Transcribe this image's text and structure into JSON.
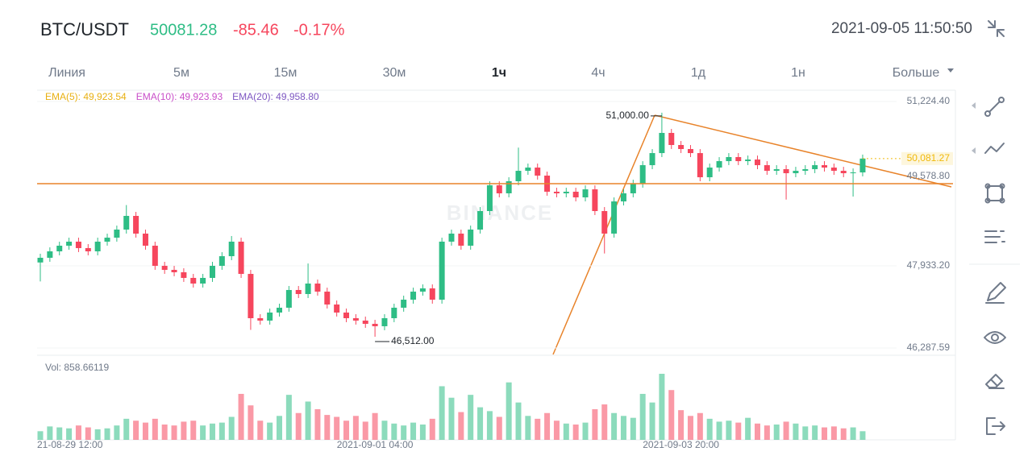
{
  "header": {
    "symbol": "BTC/USDT",
    "price": "50081.28",
    "change": "-85.46",
    "change_pct": "-0.17%",
    "time": "2021-09-05 11:50:50"
  },
  "tabs": [
    "Линия",
    "5м",
    "15м",
    "30м",
    "1ч",
    "4ч",
    "1д",
    "1н",
    "Больше"
  ],
  "active_tab": 4,
  "chart_data": {
    "type": "candlestick",
    "categories": [
      null,
      null,
      null,
      "21-08-29 12:00",
      null,
      null,
      null,
      null,
      null,
      null,
      null,
      null,
      null,
      null,
      null,
      null,
      null,
      null,
      null,
      null,
      null,
      null,
      null,
      null,
      null,
      null,
      null,
      null,
      null,
      null,
      null,
      null,
      null,
      null,
      null,
      "2021-09-01 04:00",
      null,
      null,
      null,
      null,
      null,
      null,
      null,
      null,
      null,
      null,
      null,
      null,
      null,
      null,
      null,
      null,
      null,
      null,
      null,
      null,
      null,
      null,
      null,
      null,
      null,
      null,
      null,
      null,
      null,
      null,
      null,
      "2021-09-03 20:00",
      null,
      null,
      null,
      null,
      null,
      null,
      null,
      null,
      null,
      null,
      null,
      null,
      null,
      null,
      null,
      null,
      null,
      null,
      null
    ],
    "open": [
      48000,
      48094,
      48223,
      48336,
      48417,
      48288,
      48223,
      48417,
      48497,
      48659,
      48933,
      48578,
      48336,
      47933,
      47852,
      47804,
      47691,
      47578,
      47691,
      47933,
      48126,
      48417,
      47771,
      46884,
      46836,
      46997,
      47094,
      47449,
      47368,
      47578,
      47416,
      47158,
      46997,
      46884,
      46836,
      46771,
      46723,
      46884,
      47094,
      47255,
      47416,
      47481,
      47255,
      48417,
      48578,
      48336,
      48659,
      49030,
      49546,
      49385,
      49627,
      49836,
      49901,
      49740,
      49417,
      49385,
      49417,
      49304,
      49465,
      49030,
      48578,
      49223,
      49385,
      49578,
      49949,
      50191,
      50595,
      50353,
      50272,
      50191,
      49707,
      49901,
      50030,
      50111,
      50030,
      50062,
      49949,
      49836,
      49869,
      49788,
      49836,
      49869,
      49949,
      49901,
      49836,
      49788,
      49804
    ],
    "high": [
      48174,
      48303,
      48416,
      48497,
      48497,
      48368,
      48497,
      48577,
      48739,
      49150,
      49013,
      48658,
      48416,
      48013,
      47932,
      47884,
      47771,
      47771,
      48013,
      48206,
      48530,
      48497,
      47851,
      46964,
      47077,
      47174,
      47529,
      47529,
      47980,
      47658,
      47496,
      47238,
      47077,
      46964,
      46916,
      46851,
      46964,
      47174,
      47335,
      47496,
      47561,
      47561,
      48497,
      48658,
      48658,
      48739,
      49110,
      49626,
      49626,
      49707,
      50300,
      49981,
      49981,
      49820,
      49497,
      49497,
      49497,
      49545,
      49545,
      49110,
      49303,
      49465,
      49658,
      50029,
      50271,
      51000,
      50675,
      50433,
      50352,
      50271,
      49981,
      50110,
      50191,
      50191,
      50142,
      50142,
      50029,
      49949,
      49949,
      49916,
      49949,
      50029,
      50029,
      49981,
      49916,
      49884,
      50161
    ],
    "low": [
      47620,
      48014,
      48143,
      48256,
      48208,
      48143,
      48143,
      48337,
      48417,
      48579,
      48498,
      48256,
      47853,
      47772,
      47724,
      47611,
      47498,
      47498,
      47611,
      47853,
      48046,
      47691,
      46650,
      46756,
      46756,
      46917,
      47014,
      47288,
      47288,
      47336,
      47078,
      46917,
      46804,
      46756,
      46691,
      46512,
      46643,
      46804,
      47014,
      47175,
      47336,
      47175,
      47175,
      48337,
      48256,
      48256,
      48579,
      48950,
      49305,
      49305,
      49547,
      49756,
      49660,
      49337,
      49305,
      49305,
      49224,
      49224,
      48950,
      48180,
      48498,
      49143,
      49305,
      49498,
      49869,
      50111,
      50273,
      50192,
      50111,
      49627,
      49627,
      49821,
      49950,
      49950,
      49950,
      49869,
      49756,
      49756,
      49260,
      49708,
      49756,
      49789,
      49821,
      49756,
      49708,
      49320,
      49724
    ],
    "close": [
      48094,
      48223,
      48336,
      48417,
      48288,
      48223,
      48417,
      48497,
      48659,
      48933,
      48578,
      48336,
      47933,
      47852,
      47804,
      47691,
      47578,
      47691,
      47933,
      48126,
      48417,
      47771,
      46884,
      46836,
      46997,
      47094,
      47449,
      47368,
      47578,
      47416,
      47158,
      46997,
      46884,
      46836,
      46771,
      46723,
      46884,
      47094,
      47255,
      47416,
      47481,
      47255,
      48417,
      48578,
      48336,
      48659,
      49030,
      49546,
      49385,
      49627,
      49836,
      49901,
      49740,
      49417,
      49385,
      49417,
      49304,
      49465,
      49030,
      48578,
      49223,
      49385,
      49578,
      49949,
      50191,
      50595,
      50353,
      50272,
      50191,
      49707,
      49901,
      50030,
      50111,
      50030,
      50062,
      49949,
      49836,
      49869,
      49788,
      49836,
      49869,
      49949,
      49901,
      49836,
      49788,
      49804,
      50081
    ],
    "up_color": "#2ebd85",
    "down_color": "#f6465d",
    "ylim": [
      46158,
      51450
    ],
    "yticks": [
      {
        "value": 46287.59,
        "label": "46,287.59"
      },
      {
        "value": 47933.2,
        "label": "47,933.20"
      },
      {
        "value": 51224.4,
        "label": "51,224.40"
      }
    ],
    "grid": true,
    "indicators": [
      {
        "label": "EMA(5): 49,923.54",
        "color": "#e8b012"
      },
      {
        "label": "EMA(10): 49,923.93",
        "color": "#c94fc9"
      },
      {
        "label": "EMA(20): 49,958.80",
        "color": "#7e57c2"
      }
    ],
    "price_lines": [
      {
        "value": 50081.27,
        "label": "50,081.27",
        "color": "#f0b90b"
      },
      {
        "value": 49578.8,
        "label": "49,578.80",
        "color": "#e8832a"
      }
    ],
    "annotations": [
      {
        "value": 51000,
        "label": "51,000.00"
      },
      {
        "value": 46512,
        "label": "46,512.00"
      }
    ],
    "watermark": "BINANCE",
    "volume": {
      "label": "Vol: 858.66119",
      "values": [
        900,
        1400,
        1300,
        1200,
        1500,
        1300,
        1100,
        1200,
        1500,
        2200,
        2000,
        1800,
        2200,
        1600,
        1500,
        1900,
        2000,
        1500,
        1700,
        1800,
        2400,
        4800,
        3600,
        2000,
        1800,
        2500,
        4700,
        2800,
        4000,
        3200,
        2600,
        2400,
        2000,
        2500,
        1900,
        2800,
        2000,
        1700,
        1500,
        1800,
        1600,
        2200,
        5600,
        4400,
        2900,
        4700,
        3400,
        3000,
        2400,
        6000,
        3900,
        2500,
        2200,
        2800,
        2000,
        1700,
        1600,
        1800,
        3200,
        3700,
        2800,
        2500,
        2300,
        4800,
        3900,
        6900,
        5200,
        3100,
        2500,
        2800,
        2200,
        1900,
        2000,
        1800,
        2300,
        1700,
        1500,
        1600,
        1900,
        1700,
        1400,
        1500,
        1300,
        1400,
        1200,
        1300,
        900
      ]
    }
  }
}
